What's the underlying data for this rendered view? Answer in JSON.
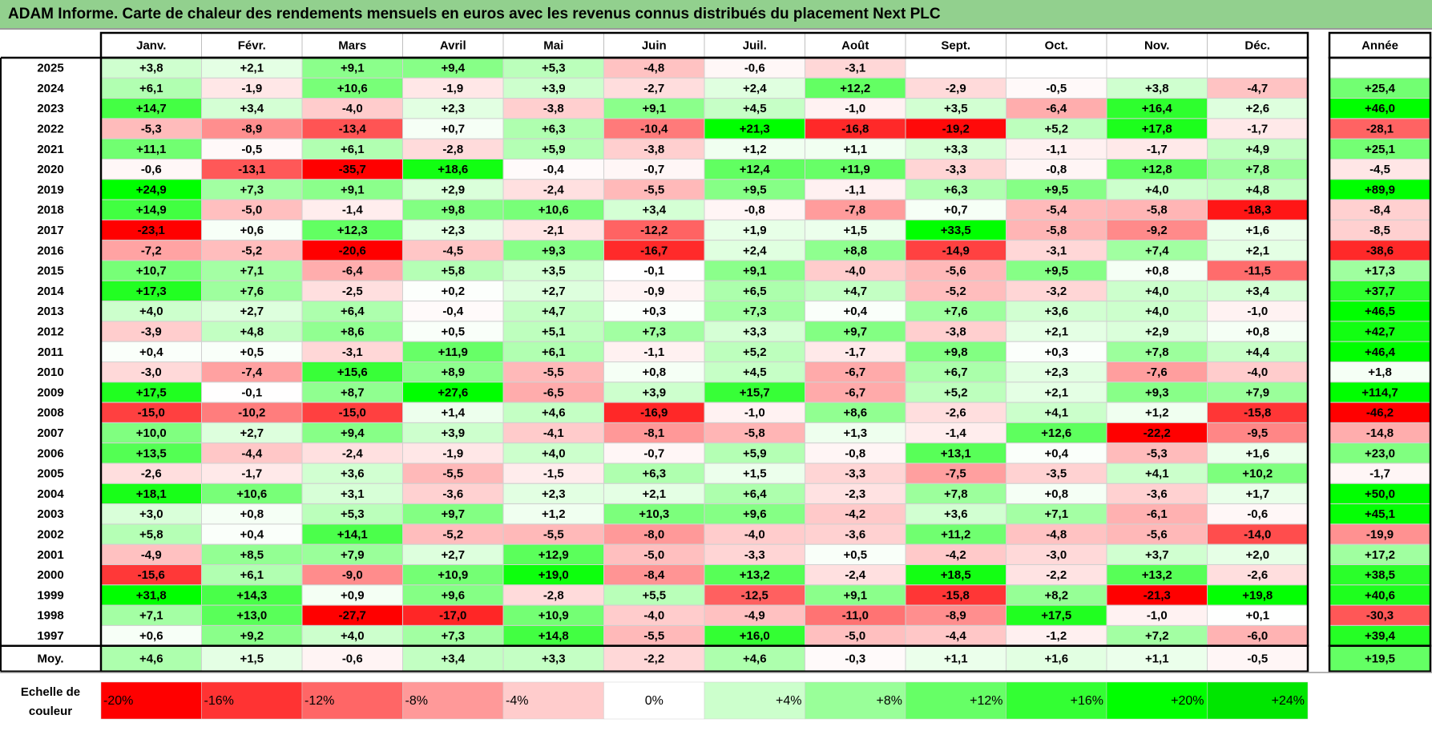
{
  "title": "ADAM Informe. Carte de chaleur des rendements mensuels en euros avec les revenus connus distribués du placement Next PLC",
  "chart_data": {
    "type": "heatmap",
    "title": "ADAM Informe. Carte de chaleur des rendements mensuels en euros avec les revenus connus distribués du placement Next PLC",
    "months": [
      "Janv.",
      "Févr.",
      "Mars",
      "Avril",
      "Mai",
      "Juin",
      "Juil.",
      "Août",
      "Sept.",
      "Oct.",
      "Nov.",
      "Déc."
    ],
    "year_header": "Année",
    "rows": [
      {
        "year": "2025",
        "values": [
          "+3,8",
          "+2,1",
          "+9,1",
          "+9,4",
          "+5,3",
          "-4,8",
          "-0,6",
          "-3,1",
          "",
          "",
          "",
          ""
        ],
        "annual": ""
      },
      {
        "year": "2024",
        "values": [
          "+6,1",
          "-1,9",
          "+10,6",
          "-1,9",
          "+3,9",
          "-2,7",
          "+2,4",
          "+12,2",
          "-2,9",
          "-0,5",
          "+3,8",
          "-4,7"
        ],
        "annual": "+25,4"
      },
      {
        "year": "2023",
        "values": [
          "+14,7",
          "+3,4",
          "-4,0",
          "+2,3",
          "-3,8",
          "+9,1",
          "+4,5",
          "-1,0",
          "+3,5",
          "-6,4",
          "+16,4",
          "+2,6"
        ],
        "annual": "+46,0"
      },
      {
        "year": "2022",
        "values": [
          "-5,3",
          "-8,9",
          "-13,4",
          "+0,7",
          "+6,3",
          "-10,4",
          "+21,3",
          "-16,8",
          "-19,2",
          "+5,2",
          "+17,8",
          "-1,7"
        ],
        "annual": "-28,1"
      },
      {
        "year": "2021",
        "values": [
          "+11,1",
          "-0,5",
          "+6,1",
          "-2,8",
          "+5,9",
          "-3,8",
          "+1,2",
          "+1,1",
          "+3,3",
          "-1,1",
          "-1,7",
          "+4,9"
        ],
        "annual": "+25,1"
      },
      {
        "year": "2020",
        "values": [
          "-0,6",
          "-13,1",
          "-35,7",
          "+18,6",
          "-0,4",
          "-0,7",
          "+12,4",
          "+11,9",
          "-3,3",
          "-0,8",
          "+12,8",
          "+7,8"
        ],
        "annual": "-4,5"
      },
      {
        "year": "2019",
        "values": [
          "+24,9",
          "+7,3",
          "+9,1",
          "+2,9",
          "-2,4",
          "-5,5",
          "+9,5",
          "-1,1",
          "+6,3",
          "+9,5",
          "+4,0",
          "+4,8"
        ],
        "annual": "+89,9"
      },
      {
        "year": "2018",
        "values": [
          "+14,9",
          "-5,0",
          "-1,4",
          "+9,8",
          "+10,6",
          "+3,4",
          "-0,8",
          "-7,8",
          "+0,7",
          "-5,4",
          "-5,8",
          "-18,3"
        ],
        "annual": "-8,4"
      },
      {
        "year": "2017",
        "values": [
          "-23,1",
          "+0,6",
          "+12,3",
          "+2,3",
          "-2,1",
          "-12,2",
          "+1,9",
          "+1,5",
          "+33,5",
          "-5,8",
          "-9,2",
          "+1,6"
        ],
        "annual": "-8,5"
      },
      {
        "year": "2016",
        "values": [
          "-7,2",
          "-5,2",
          "-20,6",
          "-4,5",
          "+9,3",
          "-16,7",
          "+2,4",
          "+8,8",
          "-14,9",
          "-3,1",
          "+7,4",
          "+2,1"
        ],
        "annual": "-38,6"
      },
      {
        "year": "2015",
        "values": [
          "+10,7",
          "+7,1",
          "-6,4",
          "+5,8",
          "+3,5",
          "-0,1",
          "+9,1",
          "-4,0",
          "-5,6",
          "+9,5",
          "+0,8",
          "-11,5"
        ],
        "annual": "+17,3"
      },
      {
        "year": "2014",
        "values": [
          "+17,3",
          "+7,6",
          "-2,5",
          "+0,2",
          "+2,7",
          "-0,9",
          "+6,5",
          "+4,7",
          "-5,2",
          "-3,2",
          "+4,0",
          "+3,4"
        ],
        "annual": "+37,7"
      },
      {
        "year": "2013",
        "values": [
          "+4,0",
          "+2,7",
          "+6,4",
          "-0,4",
          "+4,7",
          "+0,3",
          "+7,3",
          "+0,4",
          "+7,6",
          "+3,6",
          "+4,0",
          "-1,0"
        ],
        "annual": "+46,5"
      },
      {
        "year": "2012",
        "values": [
          "-3,9",
          "+4,8",
          "+8,6",
          "+0,5",
          "+5,1",
          "+7,3",
          "+3,3",
          "+9,7",
          "-3,8",
          "+2,1",
          "+2,9",
          "+0,8"
        ],
        "annual": "+42,7"
      },
      {
        "year": "2011",
        "values": [
          "+0,4",
          "+0,5",
          "-3,1",
          "+11,9",
          "+6,1",
          "-1,1",
          "+5,2",
          "-1,7",
          "+9,8",
          "+0,3",
          "+7,8",
          "+4,4"
        ],
        "annual": "+46,4"
      },
      {
        "year": "2010",
        "values": [
          "-3,0",
          "-7,4",
          "+15,6",
          "+8,9",
          "-5,5",
          "+0,8",
          "+4,5",
          "-6,7",
          "+6,7",
          "+2,3",
          "-7,6",
          "-4,0"
        ],
        "annual": "+1,8"
      },
      {
        "year": "2009",
        "values": [
          "+17,5",
          "-0,1",
          "+8,7",
          "+27,6",
          "-6,5",
          "+3,9",
          "+15,7",
          "-6,7",
          "+5,2",
          "+2,1",
          "+9,3",
          "+7,9"
        ],
        "annual": "+114,7"
      },
      {
        "year": "2008",
        "values": [
          "-15,0",
          "-10,2",
          "-15,0",
          "+1,4",
          "+4,6",
          "-16,9",
          "-1,0",
          "+8,6",
          "-2,6",
          "+4,1",
          "+1,2",
          "-15,8"
        ],
        "annual": "-46,2"
      },
      {
        "year": "2007",
        "values": [
          "+10,0",
          "+2,7",
          "+9,4",
          "+3,9",
          "-4,1",
          "-8,1",
          "-5,8",
          "+1,3",
          "-1,4",
          "+12,6",
          "-22,2",
          "-9,5"
        ],
        "annual": "-14,8"
      },
      {
        "year": "2006",
        "values": [
          "+13,5",
          "-4,4",
          "-2,4",
          "-1,9",
          "+4,0",
          "-0,7",
          "+5,9",
          "-0,8",
          "+13,1",
          "+0,4",
          "-5,3",
          "+1,6"
        ],
        "annual": "+23,0"
      },
      {
        "year": "2005",
        "values": [
          "-2,6",
          "-1,7",
          "+3,6",
          "-5,5",
          "-1,5",
          "+6,3",
          "+1,5",
          "-3,3",
          "-7,5",
          "-3,5",
          "+4,1",
          "+10,2"
        ],
        "annual": "-1,7"
      },
      {
        "year": "2004",
        "values": [
          "+18,1",
          "+10,6",
          "+3,1",
          "-3,6",
          "+2,3",
          "+2,1",
          "+6,4",
          "-2,3",
          "+7,8",
          "+0,8",
          "-3,6",
          "+1,7"
        ],
        "annual": "+50,0"
      },
      {
        "year": "2003",
        "values": [
          "+3,0",
          "+0,8",
          "+5,3",
          "+9,7",
          "+1,2",
          "+10,3",
          "+9,6",
          "-4,2",
          "+3,6",
          "+7,1",
          "-6,1",
          "-0,6"
        ],
        "annual": "+45,1"
      },
      {
        "year": "2002",
        "values": [
          "+5,8",
          "+0,4",
          "+14,1",
          "-5,2",
          "-5,5",
          "-8,0",
          "-4,0",
          "-3,6",
          "+11,2",
          "-4,8",
          "-5,6",
          "-14,0"
        ],
        "annual": "-19,9"
      },
      {
        "year": "2001",
        "values": [
          "-4,9",
          "+8,5",
          "+7,9",
          "+2,7",
          "+12,9",
          "-5,0",
          "-3,3",
          "+0,5",
          "-4,2",
          "-3,0",
          "+3,7",
          "+2,0"
        ],
        "annual": "+17,2"
      },
      {
        "year": "2000",
        "values": [
          "-15,6",
          "+6,1",
          "-9,0",
          "+10,9",
          "+19,0",
          "-8,4",
          "+13,2",
          "-2,4",
          "+18,5",
          "-2,2",
          "+13,2",
          "-2,6"
        ],
        "annual": "+38,5"
      },
      {
        "year": "1999",
        "values": [
          "+31,8",
          "+14,3",
          "+0,9",
          "+9,6",
          "-2,8",
          "+5,5",
          "-12,5",
          "+9,1",
          "-15,8",
          "+8,2",
          "-21,3",
          "+19,8"
        ],
        "annual": "+40,6"
      },
      {
        "year": "1998",
        "values": [
          "+7,1",
          "+13,0",
          "-27,7",
          "-17,0",
          "+10,9",
          "-4,0",
          "-4,9",
          "-11,0",
          "-8,9",
          "+17,5",
          "-1,0",
          "+0,1"
        ],
        "annual": "-30,3"
      },
      {
        "year": "1997",
        "values": [
          "+0,6",
          "+9,2",
          "+4,0",
          "+7,3",
          "+14,8",
          "-5,5",
          "+16,0",
          "-5,0",
          "-4,4",
          "-1,2",
          "+7,2",
          "-6,0"
        ],
        "annual": "+39,4"
      }
    ],
    "average": {
      "label": "Moy.",
      "values": [
        "+4,6",
        "+1,5",
        "-0,6",
        "+3,4",
        "+3,3",
        "-2,2",
        "+4,6",
        "-0,3",
        "+1,1",
        "+1,6",
        "+1,1",
        "-0,5"
      ],
      "annual": "+19,5"
    },
    "scale": {
      "label_line1": "Echelle de",
      "label_line2": "couleur",
      "steps": [
        {
          "label": "-20%",
          "value": -20,
          "color": "#ff0000"
        },
        {
          "label": "-16%",
          "value": -16,
          "color": "#ff3333"
        },
        {
          "label": "-12%",
          "value": -12,
          "color": "#ff6666"
        },
        {
          "label": "-8%",
          "value": -8,
          "color": "#ff9999"
        },
        {
          "label": "-4%",
          "value": -4,
          "color": "#ffcccc"
        },
        {
          "label": "0%",
          "value": 0,
          "color": "#ffffff"
        },
        {
          "label": "+4%",
          "value": 4,
          "color": "#ccffcc"
        },
        {
          "label": "+8%",
          "value": 8,
          "color": "#99ff99"
        },
        {
          "label": "+12%",
          "value": 12,
          "color": "#66ff66"
        },
        {
          "label": "+16%",
          "value": 16,
          "color": "#33ff33"
        },
        {
          "label": "+20%",
          "value": 20,
          "color": "#00ff00"
        },
        {
          "label": "+24%",
          "value": 24,
          "color": "#00e600"
        }
      ]
    }
  }
}
